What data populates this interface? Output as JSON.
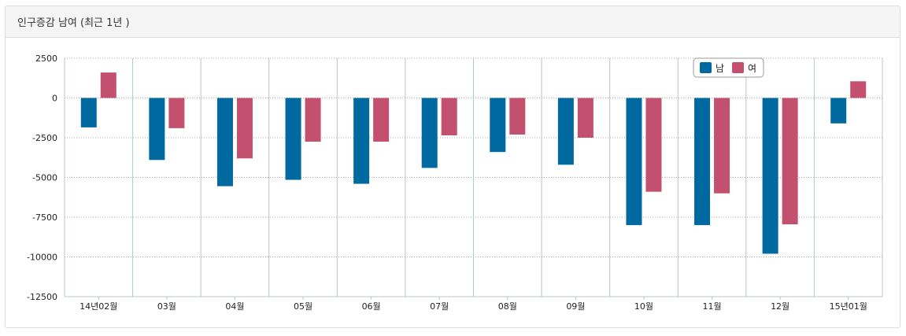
{
  "panel": {
    "title": "인구증감 남여 (최근 1년 )"
  },
  "chart_data": {
    "type": "bar",
    "categories": [
      "14년02월",
      "03월",
      "04월",
      "05월",
      "06월",
      "07월",
      "08월",
      "09월",
      "10월",
      "11월",
      "12월",
      "15년01월"
    ],
    "series": [
      {
        "name": "남",
        "color": "#00699f",
        "values": [
          -1850,
          -3900,
          -5550,
          -5150,
          -5400,
          -4400,
          -3400,
          -4200,
          -8000,
          -8000,
          -9800,
          -1600
        ]
      },
      {
        "name": "여",
        "color": "#c4506f",
        "values": [
          1600,
          -1900,
          -3800,
          -2750,
          -2750,
          -2350,
          -2300,
          -2500,
          -5900,
          -6000,
          -7950,
          1050
        ]
      }
    ],
    "ylim": [
      -12500,
      2500
    ],
    "yticks": [
      2500,
      0,
      -2500,
      -5000,
      -7500,
      -10000,
      -12500
    ],
    "ytick_labels": [
      "2500",
      "0",
      "-2500",
      "-5000",
      "-7500",
      "-10000",
      "-12500"
    ],
    "grid": true,
    "legend_position": "top-right"
  }
}
